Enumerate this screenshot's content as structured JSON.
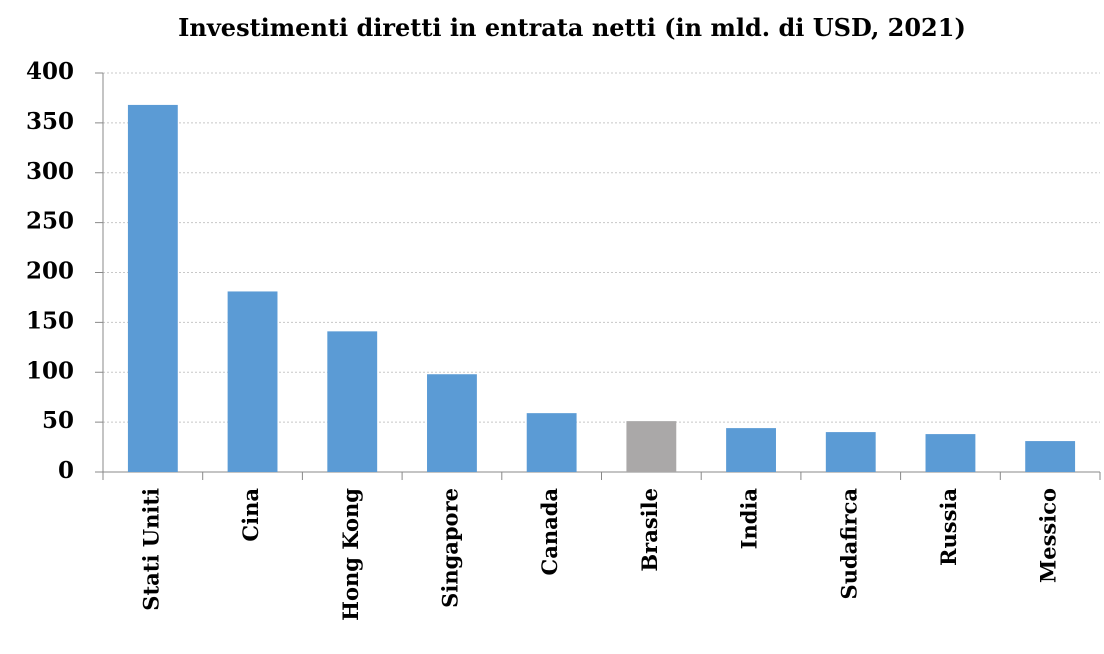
{
  "chart_data": {
    "type": "bar",
    "title": "Investimenti diretti in entrata netti (in mld. di USD, 2021)",
    "categories": [
      "Stati Uniti",
      "Cina",
      "Hong Kong",
      "Singapore",
      "Canada",
      "Brasile",
      "India",
      "Sudafirca",
      "Russia",
      "Messico"
    ],
    "values": [
      368,
      181,
      141,
      98,
      59,
      51,
      44,
      40,
      38,
      31
    ],
    "colors": [
      "#5b9bd5",
      "#5b9bd5",
      "#5b9bd5",
      "#5b9bd5",
      "#5b9bd5",
      "#aaa8a8",
      "#5b9bd5",
      "#5b9bd5",
      "#5b9bd5",
      "#5b9bd5"
    ],
    "ylim": [
      0,
      400
    ],
    "yticks": [
      0,
      50,
      100,
      150,
      200,
      250,
      300,
      350,
      400
    ],
    "grid": true
  }
}
